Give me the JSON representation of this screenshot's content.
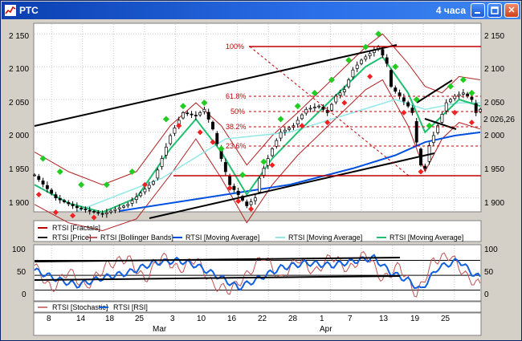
{
  "window": {
    "title": "РТС",
    "timeframe": "4 часа",
    "close_glyph": "✕"
  },
  "price_axis": {
    "labels": [
      "2 150",
      "2 100",
      "2 050",
      "2 000",
      "1 950",
      "1 900"
    ],
    "current_value": "2 026,26"
  },
  "fibo_levels": [
    "100%",
    "61.8%",
    "50%",
    "38.2%",
    "23.6%"
  ],
  "legend_top": {
    "fractals": "RTSI [Fractals]",
    "price": "RTSI [Price]",
    "bollinger": "RTSI [Bollinger Bands]",
    "ma1": "RTSI [Moving Average]",
    "ma2": "RTSI [Moving Average]",
    "ma3": "RTSI [Moving Average]"
  },
  "osc_axis": {
    "labels": [
      "100",
      "50",
      "0"
    ]
  },
  "legend_bottom": {
    "stochastic": "RTSI [Stochastic]",
    "rsi": "RTSI [RSI]"
  },
  "time_axis": {
    "days": [
      "8",
      "14",
      "18",
      "25",
      "3",
      "10",
      "16",
      "22",
      "28",
      "1",
      "7",
      "13",
      "19",
      "25"
    ],
    "months": [
      "Mar",
      "Apr"
    ]
  },
  "colors": {
    "candle": "#000000",
    "bollinger": "#b22222",
    "ma_blue": "#0050e0",
    "ma_cyan": "#90e8e8",
    "ma_green": "#20c070",
    "fib": "#c00000",
    "fractal_up": "#22cc22",
    "fractal_down": "#ee2222",
    "stochastic": "#c05050",
    "rsi": "#1060e0"
  },
  "chart_data": {
    "type": "line",
    "x_range": [
      "2008-02-05",
      "2008-04-29"
    ],
    "ylim": [
      1880,
      2165
    ],
    "price_path": [
      [
        0,
        1935
      ],
      [
        5,
        1900
      ],
      [
        10,
        1885
      ],
      [
        16,
        1875
      ],
      [
        22,
        1890
      ],
      [
        28,
        1925
      ],
      [
        32,
        1995
      ],
      [
        35,
        2030
      ],
      [
        38,
        2025
      ],
      [
        40,
        2035
      ],
      [
        42,
        2005
      ],
      [
        44,
        1960
      ],
      [
        46,
        1920
      ],
      [
        48,
        1905
      ],
      [
        50,
        1888
      ],
      [
        52,
        1900
      ],
      [
        53,
        1930
      ],
      [
        56,
        1975
      ],
      [
        58,
        2000
      ],
      [
        61,
        2010
      ],
      [
        64,
        2035
      ],
      [
        67,
        2040
      ],
      [
        69,
        2030
      ],
      [
        71,
        2055
      ],
      [
        73,
        2065
      ],
      [
        75,
        2095
      ],
      [
        77,
        2110
      ],
      [
        79,
        2120
      ],
      [
        81,
        2130
      ],
      [
        83,
        2105
      ],
      [
        84,
        2070
      ],
      [
        86,
        2055
      ],
      [
        88,
        2040
      ],
      [
        89,
        2030
      ],
      [
        90,
        1985
      ],
      [
        91,
        1950
      ],
      [
        92,
        1945
      ],
      [
        93,
        1980
      ],
      [
        95,
        2010
      ],
      [
        97,
        2045
      ],
      [
        99,
        2055
      ],
      [
        101,
        2060
      ],
      [
        103,
        2050
      ],
      [
        104,
        2030
      ],
      [
        105,
        2035
      ]
    ],
    "fractals_up": [
      [
        2,
        1960
      ],
      [
        6,
        1940
      ],
      [
        11,
        1920
      ],
      [
        17,
        1920
      ],
      [
        23,
        1940
      ],
      [
        31,
        2020
      ],
      [
        35,
        2040
      ],
      [
        40,
        2045
      ],
      [
        44,
        1975
      ],
      [
        49,
        1935
      ],
      [
        54,
        1955
      ],
      [
        58,
        2020
      ],
      [
        62,
        2040
      ],
      [
        66,
        2060
      ],
      [
        70,
        2080
      ],
      [
        74,
        2110
      ],
      [
        78,
        2130
      ],
      [
        81,
        2150
      ],
      [
        85,
        2100
      ],
      [
        90,
        2050
      ],
      [
        93,
        2010
      ],
      [
        98,
        2070
      ],
      [
        101,
        2080
      ],
      [
        103,
        2060
      ]
    ],
    "fractals_down": [
      [
        1,
        1905
      ],
      [
        5,
        1878
      ],
      [
        9,
        1873
      ],
      [
        14,
        1870
      ],
      [
        26,
        1920
      ],
      [
        34,
        2010
      ],
      [
        39,
        2000
      ],
      [
        42,
        1985
      ],
      [
        46,
        1915
      ],
      [
        48,
        1895
      ],
      [
        51,
        1883
      ],
      [
        56,
        1950
      ],
      [
        63,
        2010
      ],
      [
        69,
        2015
      ],
      [
        73,
        2045
      ],
      [
        79,
        2085
      ],
      [
        87,
        2030
      ],
      [
        91,
        1940
      ],
      [
        99,
        2030
      ],
      [
        103,
        2015
      ]
    ],
    "moving_averages": [
      {
        "name": "RTSI [Moving Average]",
        "values": [
          [
            20,
            1880
          ],
          [
            40,
            1900
          ],
          [
            60,
            1920
          ],
          [
            75,
            1945
          ],
          [
            85,
            1965
          ],
          [
            92,
            1985
          ],
          [
            99,
            1995
          ],
          [
            105,
            2000
          ]
        ]
      },
      {
        "name": "RTSI [Moving Average]",
        "values": [
          [
            10,
            1880
          ],
          [
            30,
            1930
          ],
          [
            45,
            1990
          ],
          [
            60,
            2000
          ],
          [
            75,
            2030
          ],
          [
            85,
            2050
          ],
          [
            92,
            2035
          ],
          [
            100,
            2045
          ],
          [
            105,
            2045
          ]
        ]
      },
      {
        "name": "RTSI [Moving Average]",
        "values": [
          [
            0,
            1920
          ],
          [
            8,
            1892
          ],
          [
            16,
            1878
          ],
          [
            24,
            1900
          ],
          [
            32,
            1975
          ],
          [
            38,
            2020
          ],
          [
            44,
            1970
          ],
          [
            50,
            1905
          ],
          [
            56,
            1960
          ],
          [
            62,
            2000
          ],
          [
            70,
            2050
          ],
          [
            78,
            2100
          ],
          [
            82,
            2115
          ],
          [
            88,
            2060
          ],
          [
            92,
            2000
          ],
          [
            96,
            2025
          ],
          [
            100,
            2050
          ],
          [
            105,
            2040
          ]
        ]
      }
    ],
    "bollinger": {
      "upper": [
        [
          0,
          1970
        ],
        [
          8,
          1940
        ],
        [
          16,
          1920
        ],
        [
          24,
          1940
        ],
        [
          32,
          2010
        ],
        [
          38,
          2045
        ],
        [
          44,
          2010
        ],
        [
          50,
          1950
        ],
        [
          56,
          1995
        ],
        [
          62,
          2030
        ],
        [
          70,
          2080
        ],
        [
          78,
          2130
        ],
        [
          82,
          2150
        ],
        [
          88,
          2105
        ],
        [
          92,
          2070
        ],
        [
          96,
          2060
        ],
        [
          100,
          2085
        ],
        [
          105,
          2080
        ]
      ],
      "lower": [
        [
          0,
          1890
        ],
        [
          8,
          1862
        ],
        [
          16,
          1850
        ],
        [
          24,
          1868
        ],
        [
          32,
          1935
        ],
        [
          38,
          1990
        ],
        [
          44,
          1930
        ],
        [
          50,
          1862
        ],
        [
          56,
          1920
        ],
        [
          62,
          1965
        ],
        [
          70,
          2015
        ],
        [
          78,
          2065
        ],
        [
          82,
          2080
        ],
        [
          88,
          2010
        ],
        [
          92,
          1940
        ],
        [
          96,
          1990
        ],
        [
          100,
          2015
        ],
        [
          105,
          2005
        ]
      ]
    },
    "fibonacci": {
      "high": 2135,
      "low": 1943,
      "labels": [
        "100%",
        "61.8%",
        "50%",
        "38.2%",
        "23.6%"
      ]
    },
    "oscillator_ylim": [
      0,
      110
    ],
    "oscillator_levels": [
      80,
      50,
      20
    ],
    "rsi_path": [
      [
        0,
        60
      ],
      [
        6,
        40
      ],
      [
        10,
        30
      ],
      [
        16,
        45
      ],
      [
        22,
        55
      ],
      [
        28,
        75
      ],
      [
        34,
        80
      ],
      [
        38,
        70
      ],
      [
        44,
        45
      ],
      [
        48,
        25
      ],
      [
        52,
        40
      ],
      [
        58,
        65
      ],
      [
        64,
        75
      ],
      [
        70,
        70
      ],
      [
        76,
        80
      ],
      [
        80,
        85
      ],
      [
        84,
        55
      ],
      [
        88,
        40
      ],
      [
        91,
        20
      ],
      [
        95,
        65
      ],
      [
        100,
        80
      ],
      [
        103,
        55
      ],
      [
        105,
        45
      ]
    ],
    "stochastic_path": [
      [
        0,
        70
      ],
      [
        4,
        20
      ],
      [
        8,
        60
      ],
      [
        12,
        25
      ],
      [
        17,
        70
      ],
      [
        22,
        85
      ],
      [
        26,
        40
      ],
      [
        30,
        90
      ],
      [
        34,
        60
      ],
      [
        38,
        85
      ],
      [
        42,
        30
      ],
      [
        46,
        20
      ],
      [
        50,
        50
      ],
      [
        54,
        90
      ],
      [
        58,
        40
      ],
      [
        62,
        85
      ],
      [
        66,
        55
      ],
      [
        70,
        90
      ],
      [
        74,
        60
      ],
      [
        78,
        95
      ],
      [
        82,
        40
      ],
      [
        86,
        70
      ],
      [
        90,
        10
      ],
      [
        94,
        80
      ],
      [
        98,
        90
      ],
      [
        102,
        45
      ],
      [
        105,
        30
      ]
    ]
  }
}
